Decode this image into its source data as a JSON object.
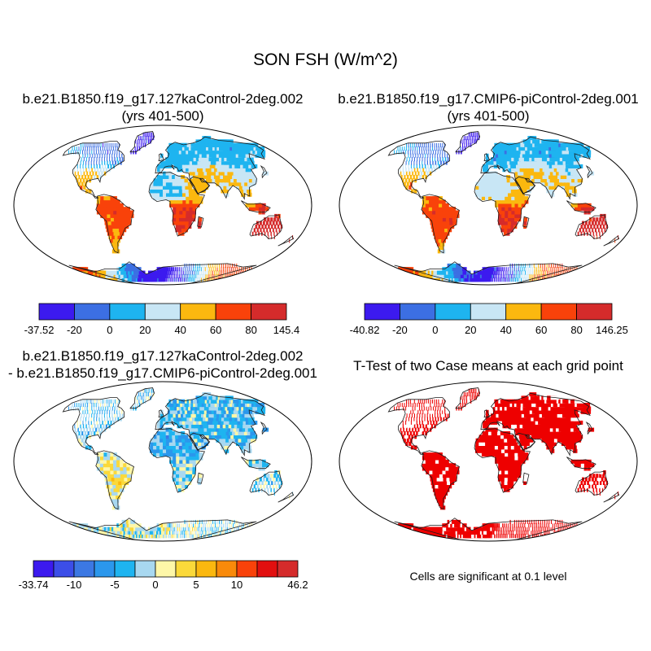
{
  "title": "SON FSH (W/m^2)",
  "panels": [
    {
      "id": "case1",
      "title_lines": [
        "b.e21.B1850.f19_g17.127kaControl-2deg.002",
        "(yrs 401-500)"
      ],
      "colorbar": {
        "colors": [
          "#3c1aef",
          "#3c6fe3",
          "#1eb4f0",
          "#c8e6f5",
          "#fbb80f",
          "#f9420a",
          "#d52b2b"
        ],
        "labels": [
          "-37.52",
          "-20",
          "0",
          "20",
          "40",
          "60",
          "80",
          "145.4"
        ]
      }
    },
    {
      "id": "case2",
      "title_lines": [
        "b.e21.B1850.f19_g17.CMIP6-piControl-2deg.001",
        "(yrs 401-500)"
      ],
      "colorbar": {
        "colors": [
          "#3c1aef",
          "#3c6fe3",
          "#1eb4f0",
          "#c8e6f5",
          "#fbb80f",
          "#f9420a",
          "#d52b2b"
        ],
        "labels": [
          "-40.82",
          "-20",
          "0",
          "20",
          "40",
          "60",
          "80",
          "146.25"
        ]
      }
    },
    {
      "id": "difference",
      "title_lines": [
        "b.e21.B1850.f19_g17.127kaControl-2deg.002",
        "- b.e21.B1850.f19_g17.CMIP6-piControl-2deg.001"
      ],
      "colorbar": {
        "colors": [
          "#3c1aef",
          "#3c4ee8",
          "#3c78e3",
          "#2b97ec",
          "#1eb4f0",
          "#a8d8f0",
          "#fef7a8",
          "#fbd93a",
          "#fbb80f",
          "#f98a0a",
          "#f9420a",
          "#e20f0f",
          "#d52b2b"
        ],
        "labels": [
          "-33.74",
          "-10",
          "-5",
          "0",
          "5",
          "10",
          "46.2"
        ]
      }
    },
    {
      "id": "ttest",
      "title_lines": [
        "T-Test of two Case means at each grid point"
      ],
      "note": "Cells are significant at 0.1 level",
      "significant_color": "#ee0000"
    }
  ],
  "chart_data": [
    {
      "type": "heatmap",
      "title": "b.e21.B1850.f19_g17.127kaControl-2deg.002 (yrs 401-500)",
      "variable": "FSH",
      "season": "SON",
      "units": "W/m^2",
      "projection": "Robinson global map",
      "levels": [
        -37.52,
        -20,
        0,
        20,
        40,
        60,
        80,
        145.4
      ],
      "region_values": {
        "antarctica": -30,
        "greenland": -30,
        "high_latitude_north": -10,
        "siberia": 10,
        "europe": 10,
        "sahara": 20,
        "southern_africa": 80,
        "australia": 90,
        "south_america_east": 70,
        "mexico": 50,
        "middle_east": 50,
        "india": 40
      }
    },
    {
      "type": "heatmap",
      "title": "b.e21.B1850.f19_g17.CMIP6-piControl-2deg.001 (yrs 401-500)",
      "variable": "FSH",
      "season": "SON",
      "units": "W/m^2",
      "projection": "Robinson global map",
      "levels": [
        -40.82,
        -20,
        0,
        20,
        40,
        60,
        80,
        146.25
      ],
      "region_values": {
        "antarctica": -30,
        "greenland": -30,
        "high_latitude_north": -10,
        "siberia": 10,
        "europe": 10,
        "sahara": 30,
        "southern_africa": 80,
        "australia": 90,
        "south_america_east": 70,
        "mexico": 50,
        "middle_east": 50,
        "india": 40
      }
    },
    {
      "type": "heatmap",
      "title": "b.e21.B1850.f19_g17.127kaControl-2deg.002 - b.e21.B1850.f19_g17.CMIP6-piControl-2deg.001",
      "variable": "FSH difference",
      "season": "SON",
      "units": "W/m^2",
      "projection": "Robinson global map",
      "levels": [
        -33.74,
        -10,
        -5,
        0,
        5,
        10,
        46.2
      ],
      "region_values": {
        "antarctica": 4,
        "greenland": -3,
        "high_latitude_north": -3,
        "siberia": -4,
        "europe": -4,
        "sahara": -8,
        "southern_africa": 0,
        "australia": -1,
        "south_america_east": 8,
        "mexico": -2,
        "middle_east": -4,
        "india": -3
      }
    },
    {
      "type": "heatmap",
      "title": "T-Test of two Case means at each grid point",
      "description_value": "significance at 0.1 level",
      "region_values": {
        "antarctica": 1,
        "greenland": 1,
        "high_latitude_north": 1,
        "siberia": 1,
        "europe": 1,
        "sahara": 1,
        "southern_africa": 1,
        "australia": 1,
        "south_america_east": 1,
        "mexico": 1,
        "middle_east": 1,
        "india": 1
      }
    }
  ]
}
